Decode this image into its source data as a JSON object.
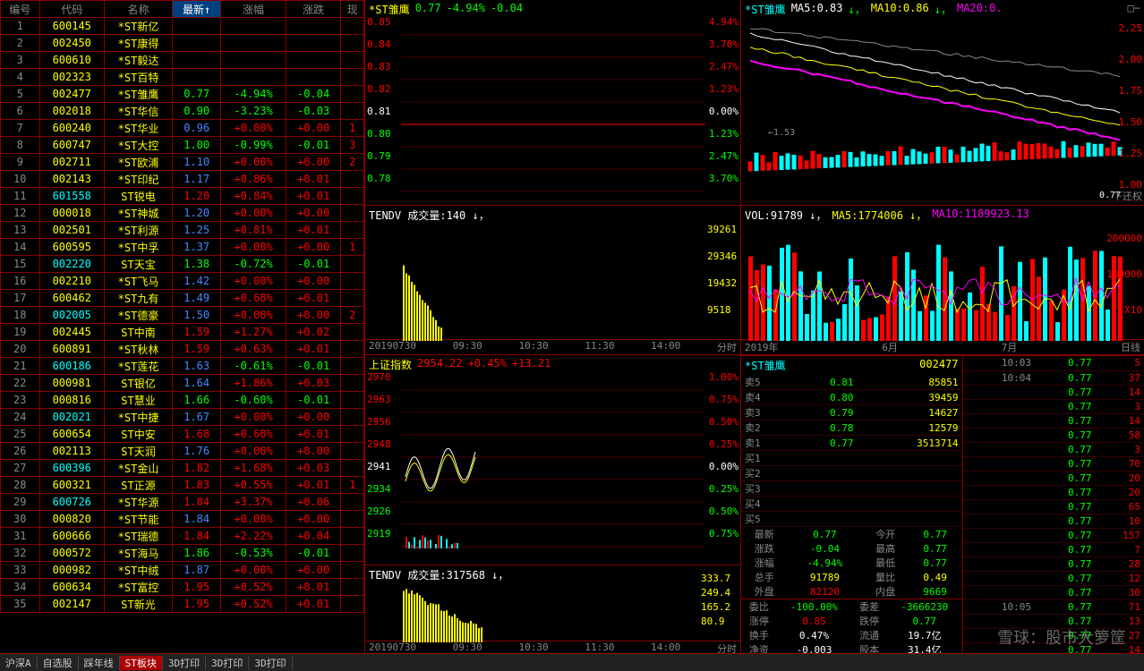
{
  "table": {
    "headers": [
      "编号",
      "代码",
      "名称",
      "最新↑",
      "涨幅",
      "涨跌",
      "现"
    ],
    "rows": [
      {
        "n": 1,
        "code": "600145",
        "name": "*ST新亿",
        "latest": "",
        "pct": "",
        "chg": "",
        "codec": "c-yellow",
        "namec": "c-yellow",
        "pctc": "",
        "chgc": ""
      },
      {
        "n": 2,
        "code": "002450",
        "name": "*ST康得",
        "latest": "",
        "pct": "",
        "chg": "",
        "codec": "c-yellow",
        "namec": "c-yellow"
      },
      {
        "n": 3,
        "code": "600610",
        "name": "*ST毅达",
        "latest": "",
        "pct": "",
        "chg": "",
        "codec": "c-yellow",
        "namec": "c-yellow"
      },
      {
        "n": 4,
        "code": "002323",
        "name": "*ST百特",
        "latest": "",
        "pct": "",
        "chg": "",
        "codec": "c-yellow",
        "namec": "c-yellow"
      },
      {
        "n": 5,
        "code": "002477",
        "name": "*ST雏鹰",
        "latest": "0.77",
        "pct": "-4.94%",
        "chg": "-0.04",
        "codec": "c-yellow",
        "namec": "c-yellow",
        "lc": "c-green",
        "pctc": "c-green",
        "chgc": "c-green"
      },
      {
        "n": 6,
        "code": "002018",
        "name": "*ST华信",
        "latest": "0.90",
        "pct": "-3.23%",
        "chg": "-0.03",
        "codec": "c-yellow",
        "namec": "c-yellow",
        "lc": "c-green",
        "pctc": "c-green",
        "chgc": "c-green"
      },
      {
        "n": 7,
        "code": "600240",
        "name": "*ST华业",
        "latest": "0.96",
        "pct": "+0.00%",
        "chg": "+0.00",
        "codec": "c-yellow",
        "namec": "c-yellow",
        "lc": "c-blue",
        "pctc": "c-red",
        "chgc": "c-red",
        "ext": "1"
      },
      {
        "n": 8,
        "code": "600747",
        "name": "*ST大控",
        "latest": "1.00",
        "pct": "-0.99%",
        "chg": "-0.01",
        "codec": "c-yellow",
        "namec": "c-yellow",
        "lc": "c-green",
        "pctc": "c-green",
        "chgc": "c-green",
        "ext": "3"
      },
      {
        "n": 9,
        "code": "002711",
        "name": "*ST欧浦",
        "latest": "1.10",
        "pct": "+0.00%",
        "chg": "+0.00",
        "codec": "c-yellow",
        "namec": "c-yellow",
        "lc": "c-blue",
        "pctc": "c-red",
        "chgc": "c-red",
        "ext": "2"
      },
      {
        "n": 10,
        "code": "002143",
        "name": "*ST印纪",
        "latest": "1.17",
        "pct": "+0.86%",
        "chg": "+0.01",
        "codec": "c-yellow",
        "namec": "c-yellow",
        "lc": "c-blue",
        "pctc": "c-red",
        "chgc": "c-red"
      },
      {
        "n": 11,
        "code": "601558",
        "name": "ST锐电",
        "latest": "1.20",
        "pct": "+0.84%",
        "chg": "+0.01",
        "codec": "c-cyan",
        "namec": "c-yellow",
        "lc": "c-red",
        "pctc": "c-red",
        "chgc": "c-red"
      },
      {
        "n": 12,
        "code": "000018",
        "name": "*ST神城",
        "latest": "1.20",
        "pct": "+0.00%",
        "chg": "+0.00",
        "codec": "c-yellow",
        "namec": "c-yellow",
        "lc": "c-blue",
        "pctc": "c-red",
        "chgc": "c-red"
      },
      {
        "n": 13,
        "code": "002501",
        "name": "*ST利源",
        "latest": "1.25",
        "pct": "+0.81%",
        "chg": "+0.01",
        "codec": "c-yellow",
        "namec": "c-yellow",
        "lc": "c-blue",
        "pctc": "c-red",
        "chgc": "c-red"
      },
      {
        "n": 14,
        "code": "600595",
        "name": "*ST中孚",
        "latest": "1.37",
        "pct": "+0.00%",
        "chg": "+0.00",
        "codec": "c-yellow",
        "namec": "c-yellow",
        "lc": "c-blue",
        "pctc": "c-red",
        "chgc": "c-red",
        "ext": "1"
      },
      {
        "n": 15,
        "code": "002220",
        "name": "ST天宝",
        "latest": "1.38",
        "pct": "-0.72%",
        "chg": "-0.01",
        "codec": "c-cyan",
        "namec": "c-yellow",
        "lc": "c-green",
        "pctc": "c-green",
        "chgc": "c-green"
      },
      {
        "n": 16,
        "code": "002210",
        "name": "*ST飞马",
        "latest": "1.42",
        "pct": "+0.00%",
        "chg": "+0.00",
        "codec": "c-yellow",
        "namec": "c-yellow",
        "lc": "c-blue",
        "pctc": "c-red",
        "chgc": "c-red"
      },
      {
        "n": 17,
        "code": "600462",
        "name": "*ST九有",
        "latest": "1.49",
        "pct": "+0.68%",
        "chg": "+0.01",
        "codec": "c-yellow",
        "namec": "c-yellow",
        "lc": "c-blue",
        "pctc": "c-red",
        "chgc": "c-red"
      },
      {
        "n": 18,
        "code": "002005",
        "name": "*ST德豪",
        "latest": "1.50",
        "pct": "+0.00%",
        "chg": "+0.00",
        "codec": "c-cyan",
        "namec": "c-yellow",
        "lc": "c-blue",
        "pctc": "c-red",
        "chgc": "c-red",
        "ext": "2"
      },
      {
        "n": 19,
        "code": "002445",
        "name": "ST中南",
        "latest": "1.59",
        "pct": "+1.27%",
        "chg": "+0.02",
        "codec": "c-yellow",
        "namec": "c-yellow",
        "lc": "c-red",
        "pctc": "c-red",
        "chgc": "c-red"
      },
      {
        "n": 20,
        "code": "600891",
        "name": "*ST秋林",
        "latest": "1.59",
        "pct": "+0.63%",
        "chg": "+0.01",
        "codec": "c-yellow",
        "namec": "c-yellow",
        "lc": "c-red",
        "pctc": "c-red",
        "chgc": "c-red"
      },
      {
        "n": 21,
        "code": "600186",
        "name": "*ST莲花",
        "latest": "1.63",
        "pct": "-0.61%",
        "chg": "-0.01",
        "codec": "c-cyan",
        "namec": "c-yellow",
        "lc": "c-blue",
        "pctc": "c-green",
        "chgc": "c-green"
      },
      {
        "n": 22,
        "code": "000981",
        "name": "ST银亿",
        "latest": "1.64",
        "pct": "+1.86%",
        "chg": "+0.03",
        "codec": "c-yellow",
        "namec": "c-yellow",
        "lc": "c-blue",
        "pctc": "c-red",
        "chgc": "c-red"
      },
      {
        "n": 23,
        "code": "000816",
        "name": "ST慧业",
        "latest": "1.66",
        "pct": "-0.60%",
        "chg": "-0.01",
        "codec": "c-yellow",
        "namec": "c-yellow",
        "lc": "c-green",
        "pctc": "c-green",
        "chgc": "c-green"
      },
      {
        "n": 24,
        "code": "002021",
        "name": "*ST中捷",
        "latest": "1.67",
        "pct": "+0.00%",
        "chg": "+0.00",
        "codec": "c-cyan",
        "namec": "c-yellow",
        "lc": "c-blue",
        "pctc": "c-red",
        "chgc": "c-red"
      },
      {
        "n": 25,
        "code": "600654",
        "name": "ST中安",
        "latest": "1.68",
        "pct": "+0.60%",
        "chg": "+0.01",
        "codec": "c-yellow",
        "namec": "c-yellow",
        "lc": "c-red",
        "pctc": "c-red",
        "chgc": "c-red"
      },
      {
        "n": 26,
        "code": "002113",
        "name": "ST天润",
        "latest": "1.76",
        "pct": "+0.00%",
        "chg": "+0.00",
        "codec": "c-yellow",
        "namec": "c-yellow",
        "lc": "c-blue",
        "pctc": "c-red",
        "chgc": "c-red"
      },
      {
        "n": 27,
        "code": "600396",
        "name": "*ST金山",
        "latest": "1.82",
        "pct": "+1.68%",
        "chg": "+0.03",
        "codec": "c-cyan",
        "namec": "c-yellow",
        "lc": "c-red",
        "pctc": "c-red",
        "chgc": "c-red"
      },
      {
        "n": 28,
        "code": "600321",
        "name": "ST正源",
        "latest": "1.83",
        "pct": "+0.55%",
        "chg": "+0.01",
        "codec": "c-yellow",
        "namec": "c-yellow",
        "lc": "c-red",
        "pctc": "c-red",
        "chgc": "c-red",
        "ext": "1"
      },
      {
        "n": 29,
        "code": "600726",
        "name": "*ST华源",
        "latest": "1.84",
        "pct": "+3.37%",
        "chg": "+0.06",
        "codec": "c-cyan",
        "namec": "c-yellow",
        "lc": "c-red",
        "pctc": "c-red",
        "chgc": "c-red"
      },
      {
        "n": 30,
        "code": "000820",
        "name": "*ST节能",
        "latest": "1.84",
        "pct": "+0.00%",
        "chg": "+0.00",
        "codec": "c-yellow",
        "namec": "c-yellow",
        "lc": "c-blue",
        "pctc": "c-red",
        "chgc": "c-red"
      },
      {
        "n": 31,
        "code": "600666",
        "name": "*ST瑞德",
        "latest": "1.84",
        "pct": "+2.22%",
        "chg": "+0.04",
        "codec": "c-yellow",
        "namec": "c-yellow",
        "lc": "c-red",
        "pctc": "c-red",
        "chgc": "c-red"
      },
      {
        "n": 32,
        "code": "000572",
        "name": "*ST海马",
        "latest": "1.86",
        "pct": "-0.53%",
        "chg": "-0.01",
        "codec": "c-yellow",
        "namec": "c-yellow",
        "lc": "c-green",
        "pctc": "c-green",
        "chgc": "c-green"
      },
      {
        "n": 33,
        "code": "000982",
        "name": "*ST中绒",
        "latest": "1.87",
        "pct": "+0.00%",
        "chg": "+0.00",
        "codec": "c-yellow",
        "namec": "c-yellow",
        "lc": "c-blue",
        "pctc": "c-red",
        "chgc": "c-red"
      },
      {
        "n": 34,
        "code": "600634",
        "name": "*ST富控",
        "latest": "1.95",
        "pct": "+0.52%",
        "chg": "+0.01",
        "codec": "c-yellow",
        "namec": "c-yellow",
        "lc": "c-red",
        "pctc": "c-red",
        "chgc": "c-red"
      },
      {
        "n": 35,
        "code": "002147",
        "name": "ST新光",
        "latest": "1.95",
        "pct": "+0.52%",
        "chg": "+0.01",
        "codec": "c-yellow",
        "namec": "c-yellow",
        "lc": "c-red",
        "pctc": "c-red",
        "chgc": "c-red"
      }
    ]
  },
  "tabs_left": [
    "沪深A",
    "自选股",
    "踩年线",
    "ST板块",
    "3D打印",
    "3D打印",
    "3D打印"
  ],
  "tabs_mid": [
    "20190730",
    "09:30",
    "10:30",
    "11:30",
    "14:00",
    "分时"
  ],
  "tabs_right": [
    "2019年",
    "6月",
    "7月",
    "日线"
  ],
  "intraday": {
    "title": "*ST雏鹰",
    "price": "0.77",
    "pct": "-4.94%",
    "chg": "-0.04",
    "y_left": [
      "0.85",
      "0.84",
      "0.83",
      "0.82",
      "0.81",
      "0.80",
      "0.79",
      "0.78"
    ],
    "y_right": [
      "4.94%",
      "3.70%",
      "2.47%",
      "1.23%",
      "0.00%",
      "1.23%",
      "2.47%",
      "3.70%"
    ],
    "color_up": "#f00",
    "color_down": "#0f0"
  },
  "intraday_vol": {
    "header": "TENDV 成交量:140 ↓，"
  },
  "index_chart": {
    "header": "上证指数",
    "val": "2954.22",
    "pct": "+0.45%",
    "chg": "+13.21",
    "y_left": [
      "2970",
      "2963",
      "2956",
      "2948",
      "2941",
      "2934",
      "2926",
      "2919"
    ],
    "y_right": [
      "1.00%",
      "0.75%",
      "0.50%",
      "0.25%",
      "0.00%",
      "0.25%",
      "0.50%",
      "0.75%"
    ]
  },
  "index_vol": {
    "header": "TENDV 成交量:317568 ↓，"
  },
  "kline": {
    "title": "*ST雏鹰",
    "ma5": "MA5:0.83",
    "ma10": "MA10:0.86",
    "ma20": "MA20:0.",
    "y_right": [
      "2.25",
      "2.00",
      "1.75",
      "1.50",
      "1.25",
      "1.00"
    ],
    "low_marker": "1.53",
    "last": "0.77",
    "note": "下还权",
    "colors": {
      "ma5": "#fff",
      "ma10": "#ff0",
      "ma20": "#f0f",
      "line": "#888"
    }
  },
  "kline_vol": {
    "header": "VOL:91789 ↓，",
    "ma5": "MA5:1774006 ↓，",
    "ma10": "MA10:1189923.13",
    "y_left": [
      "39261",
      "29346",
      "19432",
      "9518"
    ],
    "y_right": [
      "200000",
      "100000",
      "X10"
    ]
  },
  "orderbook": {
    "title": "*ST雏鹰",
    "code": "002477",
    "time1": "10:03",
    "p1": "0.77",
    "v1": "5",
    "asks": [
      {
        "l": "卖5",
        "p": "0.81",
        "v": "85851",
        "t": "10:04",
        "pp": "0.77",
        "vv": "37"
      },
      {
        "l": "卖4",
        "p": "0.80",
        "v": "39459",
        "t": "",
        "pp": "0.77",
        "vv": "14"
      },
      {
        "l": "卖3",
        "p": "0.79",
        "v": "14627",
        "t": "",
        "pp": "0.77",
        "vv": "3"
      },
      {
        "l": "卖2",
        "p": "0.78",
        "v": "12579",
        "t": "",
        "pp": "0.77",
        "vv": "14"
      },
      {
        "l": "卖1",
        "p": "0.77",
        "v": "3513714",
        "t": "",
        "pp": "0.77",
        "vv": "58"
      }
    ],
    "bids": [
      {
        "l": "买1",
        "t": "",
        "pp": "0.77",
        "vv": "3"
      },
      {
        "l": "买2",
        "t": "",
        "pp": "0.77",
        "vv": "70"
      },
      {
        "l": "买3",
        "t": "",
        "pp": "0.77",
        "vv": "20"
      },
      {
        "l": "买4",
        "t": "",
        "pp": "0.77",
        "vv": "20"
      },
      {
        "l": "买5",
        "t": "",
        "pp": "0.77",
        "vv": "65"
      }
    ]
  },
  "info": [
    {
      "l": "最新",
      "v": "0.77",
      "c": "c-green",
      "l2": "今开",
      "v2": "0.77",
      "c2": "c-green",
      "pp": "0.77",
      "vv": "10"
    },
    {
      "l": "涨跌",
      "v": "-0.04",
      "c": "c-green",
      "l2": "最高",
      "v2": "0.77",
      "c2": "c-green",
      "pp": "0.77",
      "vv": "157"
    },
    {
      "l": "涨幅",
      "v": "-4.94%",
      "c": "c-green",
      "l2": "最低",
      "v2": "0.77",
      "c2": "c-green",
      "pp": "0.77",
      "vv": "7"
    },
    {
      "l": "总手",
      "v": "91789",
      "c": "c-yellow",
      "l2": "量比",
      "v2": "0.49",
      "c2": "c-yellow",
      "pp": "0.77",
      "vv": "28"
    },
    {
      "l": "外盘",
      "v": "82120",
      "c": "c-red",
      "l2": "内盘",
      "v2": "9669",
      "c2": "c-green",
      "pp": "0.77",
      "vv": "12"
    }
  ],
  "info2": [
    {
      "pre": "333.7",
      "l": "委比",
      "v": "-100.00%",
      "c": "c-green",
      "l2": "委差",
      "v2": "-3666230",
      "c2": "c-green",
      "pp": "0.77",
      "vv": "30"
    },
    {
      "pre": "249.4",
      "l": "涨停",
      "v": "0.85",
      "c": "c-red",
      "l2": "跌停",
      "v2": "0.77",
      "c2": "c-green",
      "t": "10:05",
      "pp": "0.77",
      "vv": "71"
    },
    {
      "pre": "165.2",
      "l": "换手",
      "v": "0.47%",
      "c": "c-white",
      "l2": "流通",
      "v2": "19.7亿",
      "c2": "c-white",
      "pp": "0.77",
      "vv": "13"
    },
    {
      "pre": "80.9",
      "l": "净资",
      "v": "-0.003",
      "c": "c-white",
      "l2": "股本",
      "v2": "31.4亿",
      "c2": "c-white",
      "pp": "0.77",
      "vv": "27"
    },
    {
      "pre": "",
      "l": "市盈",
      "v": "",
      "c": "",
      "l2": "",
      "v2": "",
      "c2": "",
      "pp": "0.77",
      "vv": "14"
    }
  ],
  "watermark": "雪球：股市大箩筐"
}
